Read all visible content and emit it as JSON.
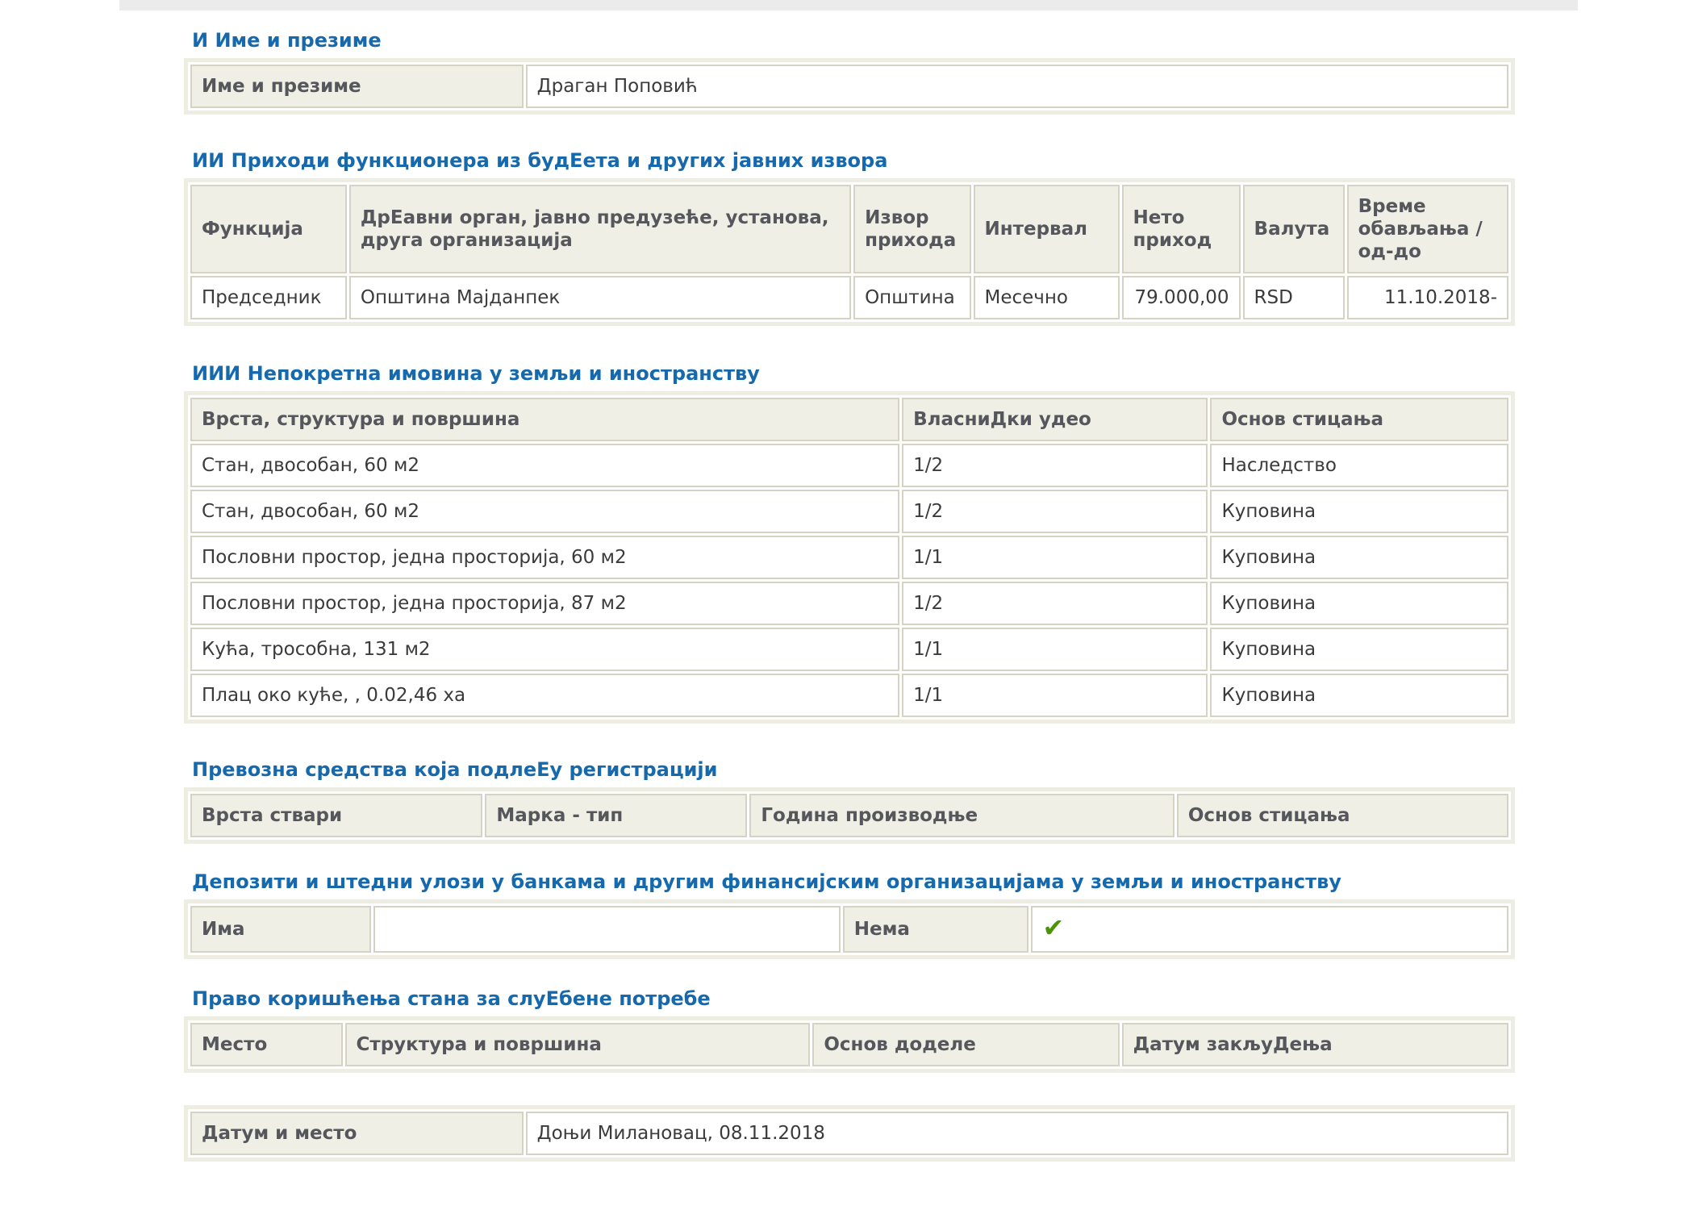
{
  "colors": {
    "accent_blue": "#1569ac",
    "check_green": "#4a9406",
    "header_cell_bg": "#f0efe5",
    "cell_border": "#d4d3c4"
  },
  "name_section": {
    "title": "И Име и презиме",
    "label": "Име и презиме",
    "value": "Драган Поповић"
  },
  "income_section": {
    "title": "ИИ Приходи функционера из будЕета и других јавних извора",
    "columns": [
      "Функција",
      "ДрЕавни орган, јавно предузеће, установа, друга организација",
      "Извор прихода",
      "Интервал",
      "Нето приход",
      "Валута",
      "Време обављања / од-до"
    ],
    "rows": [
      [
        "Председник",
        "Општина Мајданпек",
        "Општина",
        "Месечно",
        "79.000,00",
        "RSD",
        "11.10.2018-"
      ]
    ]
  },
  "realestate_section": {
    "title": "ИИИ Непокретна имовина у земљи и иностранству",
    "columns": [
      "Врста, структура и површина",
      "ВласниДки удео",
      "Основ стицања"
    ],
    "rows": [
      [
        "Стан, двособан, 60 м2",
        "1/2",
        "Наследство"
      ],
      [
        "Стан, двособан, 60 м2",
        "1/2",
        "Куповина"
      ],
      [
        "Пословни простор, једна просторија, 60 м2",
        "1/1",
        "Куповина"
      ],
      [
        "Пословни простор, једна просторија, 87 м2",
        "1/2",
        "Куповина"
      ],
      [
        "Кућа, трособна, 131 м2",
        "1/1",
        "Куповина"
      ],
      [
        "Плац око куће, , 0.02,46 ха",
        "1/1",
        "Куповина"
      ]
    ]
  },
  "vehicles_section": {
    "title": "Превозна средства која подлеЕу регистрацији",
    "columns": [
      "Врста ствари",
      "Марка - тип",
      "Година производње",
      "Основ стицања"
    ]
  },
  "deposits_section": {
    "title": "Депозити и штедни улози у банкама и другим финансијским организацијама у земљи и иностранству",
    "has_label": "Има",
    "has_value": "",
    "none_label": "Нема",
    "check_icon": "✔"
  },
  "apartment_section": {
    "title": "Право коришћења стана за слуЕбене потребе",
    "columns": [
      "Место",
      "Структура и површина",
      "Основ доделе",
      "Датум закљуДења"
    ]
  },
  "date_section": {
    "label": "Датум и место",
    "value": "Доњи Милановац, 08.11.2018"
  }
}
